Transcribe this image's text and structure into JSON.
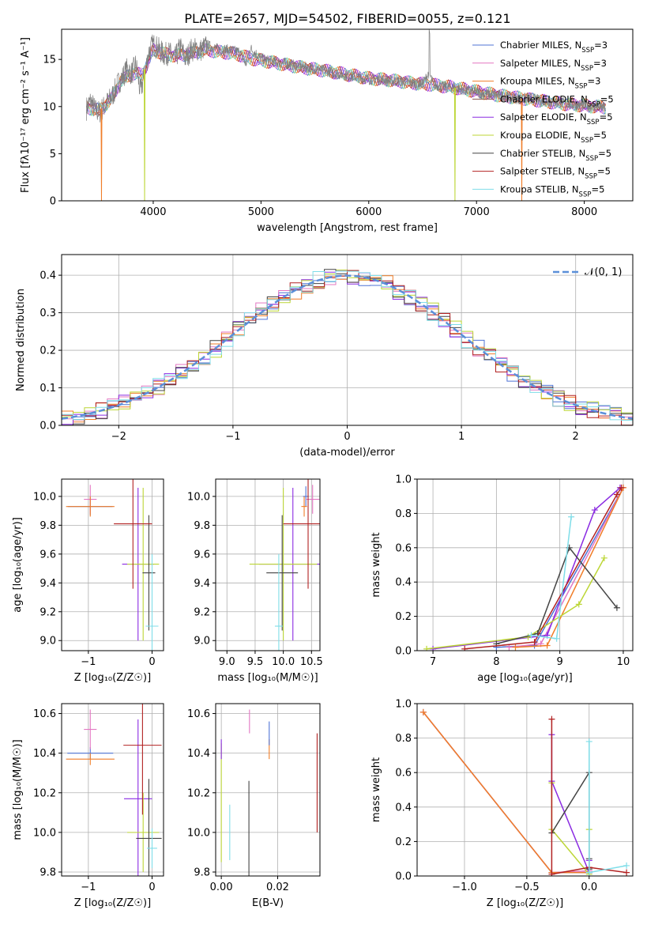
{
  "colors": {
    "chabrier_miles": "#4f73d6",
    "salpeter_miles": "#e377c2",
    "kroupa_miles": "#f07d28",
    "chabrier_elodie": "#8c564b",
    "salpeter_elodie": "#8a2be2",
    "kroupa_elodie": "#bcd635",
    "chabrier_stelib": "#444444",
    "salpeter_stelib": "#b22222",
    "kroupa_stelib": "#7fdde8",
    "gaussian": "#5b8fd9"
  },
  "chart_data": [
    {
      "id": "spectrum",
      "type": "line",
      "title": "PLATE=2657, MJD=54502, FIBERID=0055, z=0.121",
      "xlabel": "wavelength [Angstrom, rest frame]",
      "ylabel": "Flux [fλ10⁻¹⁷ erg cm⁻² s⁻¹ A⁻¹]",
      "xlim": [
        3150,
        8450
      ],
      "ylim": [
        0,
        18.2
      ],
      "xticks": [
        4000,
        5000,
        6000,
        7000,
        8000
      ],
      "yticks": [
        0,
        5,
        10,
        15
      ],
      "grid": false,
      "legend_position": "top-right",
      "legend": [
        {
          "label": "Chabrier MILES, N_SSP=3",
          "color_key": "chabrier_miles"
        },
        {
          "label": "Salpeter MILES, N_SSP=3",
          "color_key": "salpeter_miles"
        },
        {
          "label": "Kroupa MILES, N_SSP=3",
          "color_key": "kroupa_miles"
        },
        {
          "label": "Chabrier ELODIE, N_SSP=5",
          "color_key": "chabrier_elodie"
        },
        {
          "label": "Salpeter ELODIE, N_SSP=5",
          "color_key": "salpeter_elodie"
        },
        {
          "label": "Kroupa ELODIE, N_SSP=5",
          "color_key": "kroupa_elodie"
        },
        {
          "label": "Chabrier STELIB, N_SSP=5",
          "color_key": "chabrier_stelib"
        },
        {
          "label": "Salpeter STELIB, N_SSP=5",
          "color_key": "salpeter_stelib"
        },
        {
          "label": "Kroupa STELIB, N_SSP=5",
          "color_key": "kroupa_stelib"
        }
      ],
      "data_series": {
        "name": "data",
        "color_key": "chabrier_stelib",
        "x": [
          3380,
          3420,
          3460,
          3500,
          3560,
          3620,
          3680,
          3720,
          3760,
          3800,
          3840,
          3880,
          3920,
          3960,
          4000,
          4050,
          4100,
          4150,
          4200,
          4250,
          4300,
          4350,
          4400,
          4450,
          4500,
          4600,
          4700,
          4800,
          4860,
          4900,
          5000,
          5100,
          5200,
          5300,
          5400,
          5500,
          5600,
          5700,
          5800,
          5900,
          6000,
          6100,
          6200,
          6300,
          6400,
          6500,
          6560,
          6600,
          6700,
          6800,
          6900,
          7000,
          7100,
          7200,
          7300,
          7400,
          7500,
          7600,
          7700,
          7800,
          7900,
          8000,
          8100,
          8200
        ],
        "y": [
          9.8,
          10.6,
          9.6,
          9.4,
          10.2,
          11.1,
          12.6,
          13.2,
          14.0,
          13.5,
          14.5,
          11.5,
          13.4,
          15.8,
          16.6,
          16.1,
          15.5,
          15.7,
          15.0,
          16.3,
          15.1,
          16.0,
          16.1,
          16.0,
          16.5,
          16.1,
          16.0,
          15.8,
          14.5,
          16.2,
          15.1,
          14.8,
          14.6,
          14.4,
          14.2,
          14.0,
          13.8,
          13.5,
          13.3,
          13.1,
          12.9,
          12.9,
          12.7,
          12.7,
          12.5,
          12.4,
          13.6,
          12.3,
          12.1,
          12.0,
          11.7,
          11.5,
          11.3,
          11.2,
          11.0,
          10.8,
          10.9,
          10.6,
          10.5,
          10.4,
          10.2,
          10.1,
          10.0,
          9.9
        ]
      },
      "model_series": {
        "name": "models",
        "x": [
          3380,
          3500,
          3600,
          3700,
          3800,
          3900,
          4000,
          4100,
          4200,
          4300,
          4400,
          4500,
          4600,
          4700,
          4800,
          4900,
          5000,
          5200,
          5400,
          5600,
          5800,
          6000,
          6200,
          6400,
          6600,
          6800,
          7000,
          7200,
          7400,
          7600,
          7800,
          8000,
          8200
        ],
        "y": [
          9.9,
          9.6,
          10.6,
          12.7,
          13.5,
          13.4,
          16.0,
          15.6,
          15.4,
          15.5,
          15.8,
          16.0,
          15.8,
          15.7,
          15.5,
          15.1,
          14.9,
          14.5,
          14.1,
          13.8,
          13.4,
          13.0,
          12.8,
          12.5,
          12.3,
          12.0,
          11.6,
          11.2,
          10.9,
          10.6,
          10.3,
          10.1,
          9.9
        ]
      },
      "dips": [
        {
          "x": 3520,
          "color_key": "kroupa_miles"
        },
        {
          "x": 3920,
          "color_key": "kroupa_elodie"
        },
        {
          "x": 6800,
          "color_key": "kroupa_elodie"
        },
        {
          "x": 7420,
          "color_key": "kroupa_miles"
        }
      ]
    },
    {
      "id": "residuals",
      "type": "line",
      "xlabel": "(data-model)/error",
      "ylabel": "Normed distribution",
      "xlim": [
        -2.5,
        2.5
      ],
      "ylim": [
        0,
        0.455
      ],
      "xticks": [
        -2,
        -1,
        0,
        1,
        2
      ],
      "yticks": [
        0.0,
        0.1,
        0.2,
        0.3,
        0.4
      ],
      "grid": true,
      "legend_position": "top-right",
      "legend": [
        {
          "label": "𝒩(0, 1)",
          "color_key": "gaussian",
          "dashed": true
        }
      ],
      "bin_width": 0.1,
      "bin_start": -2.5,
      "series": [
        {
          "color_key": "chabrier_miles",
          "shift": 0.0
        },
        {
          "color_key": "salpeter_miles",
          "shift": 0.012
        },
        {
          "color_key": "kroupa_miles",
          "shift": -0.01
        },
        {
          "color_key": "salpeter_elodie",
          "shift": 0.015
        },
        {
          "color_key": "kroupa_elodie",
          "shift": -0.014
        },
        {
          "color_key": "chabrier_stelib",
          "shift": 0.008
        },
        {
          "color_key": "salpeter_stelib",
          "shift": -0.006
        },
        {
          "color_key": "kroupa_stelib",
          "shift": 0.011
        }
      ]
    },
    {
      "id": "z_age",
      "type": "scatter",
      "xlabel": "Z [log₁₀(Z/Z☉)]",
      "ylabel": "age  [log₁₀(age/yr)]",
      "xlim": [
        -1.42,
        0.18
      ],
      "ylim": [
        8.93,
        10.12
      ],
      "xticks": [
        -1,
        0
      ],
      "yticks": [
        9.0,
        9.2,
        9.4,
        9.6,
        9.8,
        10.0
      ],
      "grid": true,
      "points": [
        {
          "color_key": "chabrier_miles",
          "x": -0.97,
          "xerr": 0.35,
          "y": 9.93,
          "yerr": 0.06
        },
        {
          "color_key": "salpeter_miles",
          "x": -0.97,
          "xerr": 0.1,
          "y": 9.98,
          "yerr": 0.1
        },
        {
          "color_key": "kroupa_miles",
          "x": -0.97,
          "xerr": 0.38,
          "y": 9.93,
          "yerr": 0.07
        },
        {
          "color_key": "salpeter_elodie",
          "x": -0.22,
          "xerr": 0.25,
          "y": 9.53,
          "yerr": 0.53
        },
        {
          "color_key": "kroupa_elodie",
          "x": -0.14,
          "xerr": 0.25,
          "y": 9.53,
          "yerr": 0.53
        },
        {
          "color_key": "chabrier_stelib",
          "x": -0.05,
          "xerr": 0.1,
          "y": 9.47,
          "yerr": 0.4
        },
        {
          "color_key": "salpeter_stelib",
          "x": -0.3,
          "xerr": 0.3,
          "y": 9.81,
          "yerr": 0.45
        },
        {
          "color_key": "kroupa_stelib",
          "x": 0.0,
          "xerr": 0.1,
          "y": 9.1,
          "yerr": 0.5
        }
      ]
    },
    {
      "id": "mass_age",
      "type": "scatter",
      "xlabel": "mass [log₁₀(M/M☉)]",
      "ylabel": "",
      "xlim": [
        8.8,
        10.65
      ],
      "ylim": [
        8.93,
        10.12
      ],
      "xticks": [
        9.0,
        9.5,
        10.0,
        10.5
      ],
      "yticks": [
        9.0,
        9.2,
        9.4,
        9.6,
        9.8,
        10.0
      ],
      "grid": true,
      "points": [
        {
          "color_key": "chabrier_miles",
          "x": 10.4,
          "xerr": 0.05,
          "y": 10.0,
          "yerr": 0.07
        },
        {
          "color_key": "salpeter_miles",
          "x": 10.52,
          "xerr": 0.12,
          "y": 9.98,
          "yerr": 0.1
        },
        {
          "color_key": "kroupa_miles",
          "x": 10.37,
          "xerr": 0.05,
          "y": 9.93,
          "yerr": 0.07
        },
        {
          "color_key": "salpeter_elodie",
          "x": 10.17,
          "xerr": 0.6,
          "y": 9.53,
          "yerr": 0.53
        },
        {
          "color_key": "kroupa_elodie",
          "x": 10.0,
          "xerr": 0.6,
          "y": 9.53,
          "yerr": 0.53
        },
        {
          "color_key": "chabrier_stelib",
          "x": 9.98,
          "xerr": 0.28,
          "y": 9.47,
          "yerr": 0.4
        },
        {
          "color_key": "salpeter_stelib",
          "x": 10.44,
          "xerr": 0.44,
          "y": 9.81,
          "yerr": 0.45
        },
        {
          "color_key": "kroupa_stelib",
          "x": 9.92,
          "xerr": 0.07,
          "y": 9.1,
          "yerr": 0.5
        }
      ]
    },
    {
      "id": "age_weight",
      "type": "line",
      "xlabel": "age  [log₁₀(age/yr)]",
      "ylabel": "mass weight",
      "xlim": [
        6.75,
        10.15
      ],
      "ylim": [
        0,
        1.0
      ],
      "xticks": [
        7,
        8,
        9,
        10
      ],
      "yticks": [
        0.0,
        0.2,
        0.4,
        0.6,
        0.8,
        1.0
      ],
      "grid": true,
      "series": [
        {
          "color_key": "chabrier_miles",
          "x": [
            8.0,
            8.6,
            10.0
          ],
          "y": [
            0.02,
            0.03,
            0.95
          ]
        },
        {
          "color_key": "salpeter_miles",
          "x": [
            8.2,
            8.7,
            10.0
          ],
          "y": [
            0.02,
            0.04,
            0.95
          ]
        },
        {
          "color_key": "kroupa_miles",
          "x": [
            8.3,
            8.8,
            10.0
          ],
          "y": [
            0.02,
            0.03,
            0.95
          ]
        },
        {
          "color_key": "salpeter_elodie",
          "x": [
            7.0,
            8.8,
            9.55,
            9.95
          ],
          "y": [
            0.01,
            0.09,
            0.82,
            0.95
          ]
        },
        {
          "color_key": "kroupa_elodie",
          "x": [
            6.9,
            8.5,
            9.3,
            9.7
          ],
          "y": [
            0.01,
            0.08,
            0.27,
            0.54
          ]
        },
        {
          "color_key": "chabrier_stelib",
          "x": [
            8.0,
            8.65,
            9.15,
            9.9
          ],
          "y": [
            0.04,
            0.1,
            0.6,
            0.25
          ]
        },
        {
          "color_key": "salpeter_stelib",
          "x": [
            7.5,
            8.6,
            9.9,
            9.97
          ],
          "y": [
            0.01,
            0.05,
            0.91,
            0.95
          ]
        },
        {
          "color_key": "kroupa_stelib",
          "x": [
            8.55,
            8.95,
            9.18
          ],
          "y": [
            0.09,
            0.07,
            0.78
          ]
        }
      ]
    },
    {
      "id": "z_mass",
      "type": "scatter",
      "xlabel": "Z [log₁₀(Z/Z☉)]",
      "ylabel": "mass [log₁₀(M/M☉)]",
      "xlim": [
        -1.42,
        0.18
      ],
      "ylim": [
        9.78,
        10.65
      ],
      "xticks": [
        -1,
        0
      ],
      "yticks": [
        9.8,
        10.0,
        10.2,
        10.4,
        10.6
      ],
      "grid": true,
      "points": [
        {
          "color_key": "chabrier_miles",
          "x": -0.97,
          "xerr": 0.36,
          "y": 10.4,
          "yerr": 0.03
        },
        {
          "color_key": "salpeter_miles",
          "x": -0.97,
          "xerr": 0.1,
          "y": 10.52,
          "yerr": 0.1
        },
        {
          "color_key": "kroupa_miles",
          "x": -0.97,
          "xerr": 0.38,
          "y": 10.37,
          "yerr": 0.03
        },
        {
          "color_key": "salpeter_elodie",
          "x": -0.22,
          "xerr": 0.22,
          "y": 10.17,
          "yerr": 0.4
        },
        {
          "color_key": "kroupa_elodie",
          "x": -0.14,
          "xerr": 0.25,
          "y": 10.0,
          "yerr": 0.2
        },
        {
          "color_key": "chabrier_stelib",
          "x": -0.05,
          "xerr": 0.2,
          "y": 9.97,
          "yerr": 0.3
        },
        {
          "color_key": "salpeter_stelib",
          "x": -0.15,
          "xerr": 0.3,
          "y": 10.44,
          "yerr": 0.35
        },
        {
          "color_key": "kroupa_stelib",
          "x": 0.0,
          "xerr": 0.08,
          "y": 9.92,
          "yerr": 0.1
        }
      ]
    },
    {
      "id": "ebv_mass",
      "type": "scatter",
      "xlabel": "E(B-V)",
      "ylabel": "",
      "xlim": [
        -0.002,
        0.035
      ],
      "ylim": [
        9.78,
        10.65
      ],
      "xticks": [
        0.0,
        0.02
      ],
      "yticks": [
        9.8,
        10.0,
        10.2,
        10.4,
        10.6
      ],
      "grid": true,
      "points": [
        {
          "color_key": "kroupa_elodie",
          "x": 0.0,
          "xerr": 0,
          "y": 10.15,
          "yerr": 0.3
        },
        {
          "color_key": "salpeter_elodie",
          "x": 0.0,
          "xerr": 0,
          "y": 10.42,
          "yerr": 0.05
        },
        {
          "color_key": "kroupa_stelib",
          "x": 0.003,
          "xerr": 0,
          "y": 10.0,
          "yerr": 0.14
        },
        {
          "color_key": "chabrier_stelib",
          "x": 0.0098,
          "xerr": 0,
          "y": 10.02,
          "yerr": 0.24
        },
        {
          "color_key": "salpeter_miles",
          "x": 0.01,
          "xerr": 0,
          "y": 10.56,
          "yerr": 0.06
        },
        {
          "color_key": "kroupa_miles",
          "x": 0.017,
          "xerr": 0,
          "y": 10.42,
          "yerr": 0.05
        },
        {
          "color_key": "chabrier_miles",
          "x": 0.017,
          "xerr": 0,
          "y": 10.5,
          "yerr": 0.06
        },
        {
          "color_key": "salpeter_stelib",
          "x": 0.034,
          "xerr": 0,
          "y": 10.25,
          "yerr": 0.25
        }
      ]
    },
    {
      "id": "z_weight",
      "type": "line",
      "xlabel": "Z [log₁₀(Z/Z☉)]",
      "ylabel": "mass weight",
      "xlim": [
        -1.38,
        0.35
      ],
      "ylim": [
        0,
        1.0
      ],
      "xticks": [
        -1.0,
        -0.5,
        0.0
      ],
      "yticks": [
        0.0,
        0.2,
        0.4,
        0.6,
        0.8,
        1.0
      ],
      "grid": true,
      "series": [
        {
          "color_key": "chabrier_miles",
          "x": [
            -1.33,
            -0.3,
            0.0
          ],
          "y": [
            0.95,
            0.02,
            0.02
          ]
        },
        {
          "color_key": "salpeter_miles",
          "x": [
            -1.33,
            -0.3,
            0.0
          ],
          "y": [
            0.95,
            0.02,
            0.03
          ]
        },
        {
          "color_key": "kroupa_miles",
          "x": [
            -1.33,
            -0.3,
            0.0
          ],
          "y": [
            0.95,
            0.02,
            0.02
          ]
        },
        {
          "color_key": "salpeter_elodie",
          "x": [
            -0.3,
            -0.3,
            0.0,
            0.0
          ],
          "y": [
            0.82,
            0.55,
            0.02,
            0.09
          ]
        },
        {
          "color_key": "kroupa_elodie",
          "x": [
            -0.3,
            -0.3,
            0.0,
            0.0
          ],
          "y": [
            0.54,
            0.27,
            0.01,
            0.27
          ]
        },
        {
          "color_key": "chabrier_stelib",
          "x": [
            -0.3,
            0.0,
            0.0,
            0.0
          ],
          "y": [
            0.25,
            0.6,
            0.1,
            0.04
          ]
        },
        {
          "color_key": "salpeter_stelib",
          "x": [
            -0.3,
            -0.3,
            0.0,
            0.3
          ],
          "y": [
            0.91,
            0.01,
            0.05,
            0.02
          ]
        },
        {
          "color_key": "kroupa_stelib",
          "x": [
            0.0,
            0.0,
            0.3
          ],
          "y": [
            0.78,
            0.02,
            0.06
          ]
        }
      ]
    }
  ]
}
